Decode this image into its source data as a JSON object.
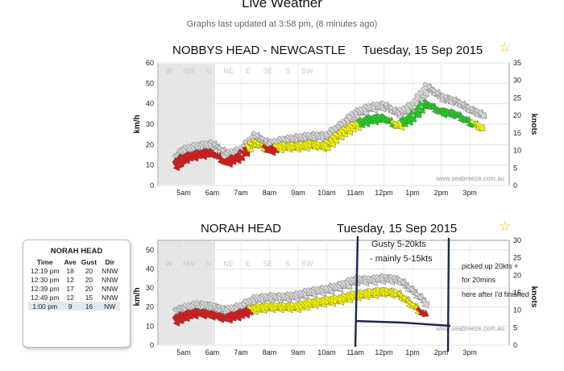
{
  "page": {
    "title": "Live Weather",
    "updated": "Graphs last updated at 3:58 pm, (8 minutes ago)"
  },
  "colors": {
    "red": "#d81818",
    "yellow": "#f0f000",
    "green": "#22cc22",
    "grey": "#cccccc",
    "night": "#e6e6e6",
    "annotation": "#1a2a4a"
  },
  "charts": [
    {
      "station": "NOBBYS HEAD - NEWCASTLE",
      "date": "Tuesday, 15 Sep 2015",
      "star": "star-icon",
      "ylabel": "km/h",
      "y2label": "knots",
      "credit": "www.seabreeze.com.au",
      "dirs": [
        "W",
        "NW",
        "N",
        "NE",
        "E",
        "SE",
        "S",
        "SW"
      ],
      "kmh_ticks": [
        "0",
        "10",
        "20",
        "30",
        "40",
        "50",
        "60"
      ],
      "knot_ticks": [
        "0",
        "5",
        "10",
        "15",
        "20",
        "25",
        "30",
        "35"
      ],
      "time_ticks": [
        "5am",
        "6am",
        "7am",
        "8am",
        "9am",
        "10am",
        "11am",
        "12pm",
        "1pm",
        "2pm",
        "3pm"
      ]
    },
    {
      "station": "NORAH HEAD",
      "date": "Tuesday, 15 Sep 2015",
      "star": "star-icon",
      "ylabel": "km/h",
      "y2label": "knots",
      "credit": "www.seabreeze.com.au",
      "dirs": [
        "W",
        "NW",
        "N",
        "NE",
        "E",
        "SE",
        "S",
        "SW"
      ],
      "kmh_ticks": [
        "0",
        "10",
        "20",
        "30",
        "40",
        "50"
      ],
      "knot_ticks": [
        "0",
        "5",
        "10",
        "15",
        "20",
        "25",
        "30"
      ],
      "time_ticks": [
        "5am",
        "6am",
        "7am",
        "8am",
        "9am",
        "10am",
        "11am",
        "12pm",
        "1pm",
        "2pm",
        "3pm"
      ],
      "annotations": {
        "gusty": "Gusty 5-20kts",
        "mainly": "- mainly 5-15kts",
        "note1": "picked up 20kts +",
        "note2": "for 20mins",
        "note3": "here after I'd finished"
      }
    }
  ],
  "chart_data": [
    {
      "type": "line",
      "title": "NOBBYS HEAD - NEWCASTLE",
      "x": [
        "4:45am",
        "5am",
        "5:30am",
        "6am",
        "6:30am",
        "7am",
        "7:30am",
        "8am",
        "8:30am",
        "9am",
        "9:30am",
        "10am",
        "10:30am",
        "11am",
        "11:30am",
        "12pm",
        "12:30pm",
        "1pm",
        "1:30pm",
        "2pm",
        "2:30pm",
        "3pm",
        "3:30pm"
      ],
      "series": [
        {
          "values": [
            10,
            13,
            15,
            16,
            11,
            14,
            21,
            17,
            19,
            19,
            20,
            19,
            25,
            29,
            32,
            33,
            29,
            33,
            40,
            36,
            35,
            31,
            28
          ]
        },
        {
          "values": [
            13,
            17,
            19,
            20,
            15,
            17,
            24,
            20,
            22,
            23,
            24,
            24,
            29,
            35,
            38,
            39,
            35,
            39,
            48,
            43,
            41,
            37,
            34
          ]
        }
      ],
      "ylim": [
        0,
        60
      ],
      "y2lim": [
        0,
        35
      ]
    },
    {
      "type": "line",
      "title": "NORAH HEAD",
      "x": [
        "4:45am",
        "5am",
        "5:30am",
        "6am",
        "6:30am",
        "7am",
        "7:30am",
        "8am",
        "8:30am",
        "9am",
        "9:30am",
        "10am",
        "10:30am",
        "11am",
        "11:30am",
        "12pm",
        "12:30pm",
        "1pm",
        "1:30pm"
      ],
      "series": [
        {
          "values": [
            13,
            15,
            17,
            16,
            14,
            16,
            19,
            20,
            20,
            20,
            22,
            23,
            24,
            26,
            27,
            28,
            27,
            21,
            15
          ]
        },
        {
          "values": [
            17,
            19,
            21,
            20,
            18,
            20,
            24,
            25,
            25,
            26,
            28,
            29,
            31,
            34,
            34,
            35,
            34,
            28,
            21
          ]
        }
      ],
      "ylim": [
        0,
        55
      ],
      "y2lim": [
        0,
        30
      ]
    }
  ],
  "observations": {
    "title": "NORAH HEAD",
    "headers": [
      "Time",
      "Ave",
      "Gust",
      "Dir"
    ],
    "rows": [
      [
        "12:19 pm",
        "18",
        "20",
        "NNW"
      ],
      [
        "12:30 pm",
        "12",
        "20",
        "NNW"
      ],
      [
        "12:39 pm",
        "17",
        "20",
        "NNW"
      ],
      [
        "12:49 pm",
        "12",
        "15",
        "NNW"
      ],
      [
        "1:00 pm",
        "9",
        "16",
        "NW"
      ]
    ]
  }
}
